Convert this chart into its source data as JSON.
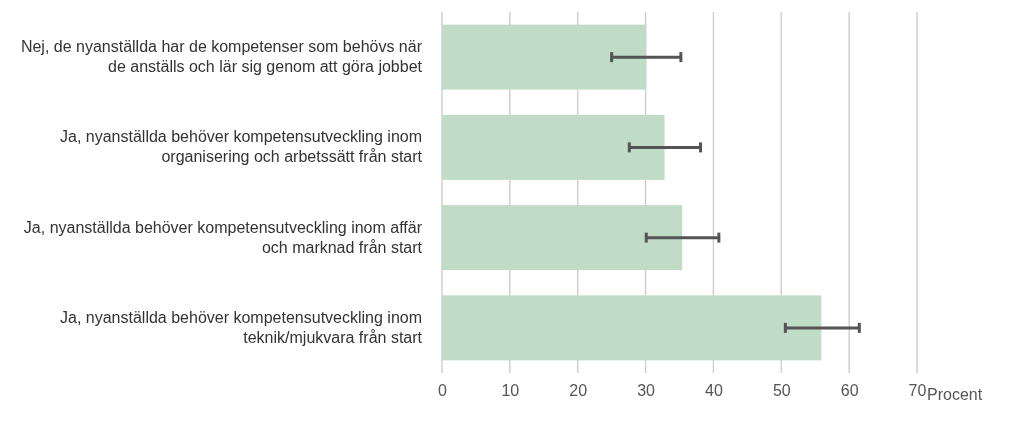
{
  "chart_data": {
    "type": "bar",
    "orientation": "horizontal",
    "categories": [
      "Nej, de nyanställda har de kompetenser som behövs när de anställs och lär sig genom att göra jobbet",
      "Ja, nyanställda behöver kompetensutveckling inom organisering och arbetssätt från start",
      "Ja, nyanställda behöver kompetensutveckling inom affär och marknad från start",
      "Ja, nyanställda behöver kompetensutveckling inom teknik/mjukvara från start"
    ],
    "values": [
      30.1,
      32.8,
      35.4,
      55.9
    ],
    "errors": [
      [
        25.0,
        35.2
      ],
      [
        27.6,
        38.1
      ],
      [
        30.1,
        40.8
      ],
      [
        50.6,
        61.5
      ]
    ],
    "color": "#c0dcc6",
    "xlim": [
      0,
      70
    ],
    "xticks": [
      0,
      10,
      20,
      30,
      40,
      50,
      60,
      70
    ],
    "xlabel": "Procent",
    "grid": "x"
  }
}
